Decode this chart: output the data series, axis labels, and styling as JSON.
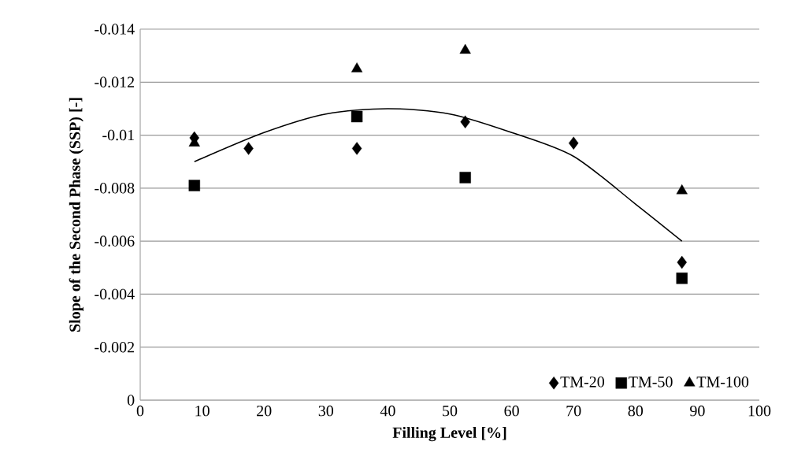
{
  "chart_data": {
    "type": "scatter",
    "xlabel": "Filling Level [%]",
    "ylabel": "Slope of the Second Phase (SSP) [-]",
    "series": [
      {
        "name": "TM-20",
        "color": "#000000",
        "marker": "diamond",
        "x": [
          8.75,
          17.5,
          35,
          52.5,
          70,
          87.5
        ],
        "values": [
          -0.0099,
          -0.0095,
          -0.0095,
          -0.0105,
          -0.0097,
          -0.0052
        ]
      },
      {
        "name": "TM-50",
        "color": "#000000",
        "marker": "square",
        "x": [
          8.75,
          35,
          52.5,
          87.5
        ],
        "values": [
          -0.0081,
          -0.0107,
          -0.0084,
          -0.0046
        ]
      },
      {
        "name": "TM-100",
        "color": "#000000",
        "marker": "triangle",
        "x": [
          8.75,
          35,
          52.5,
          87.5
        ],
        "values": [
          -0.0097,
          -0.0125,
          -0.0132,
          -0.0079
        ]
      },
      {
        "type": "line",
        "color": "#000000",
        "marker": "none",
        "x": [
          8.75,
          20,
          30,
          40,
          50,
          60,
          70,
          80,
          87.5
        ],
        "values": [
          -0.009,
          -0.0101,
          -0.0108,
          -0.011,
          -0.0108,
          -0.0101,
          -0.0092,
          -0.0074,
          -0.006
        ]
      }
    ],
    "xlim": [
      0,
      100
    ],
    "xticks": [
      0,
      10,
      20,
      30,
      40,
      50,
      60,
      70,
      80,
      90,
      100
    ],
    "ylim": [
      0,
      -0.014
    ],
    "yticks": [
      0,
      -0.002,
      -0.004,
      -0.006,
      -0.008,
      -0.01,
      -0.012,
      -0.014
    ],
    "grid": "y",
    "legend": "bottom right"
  }
}
